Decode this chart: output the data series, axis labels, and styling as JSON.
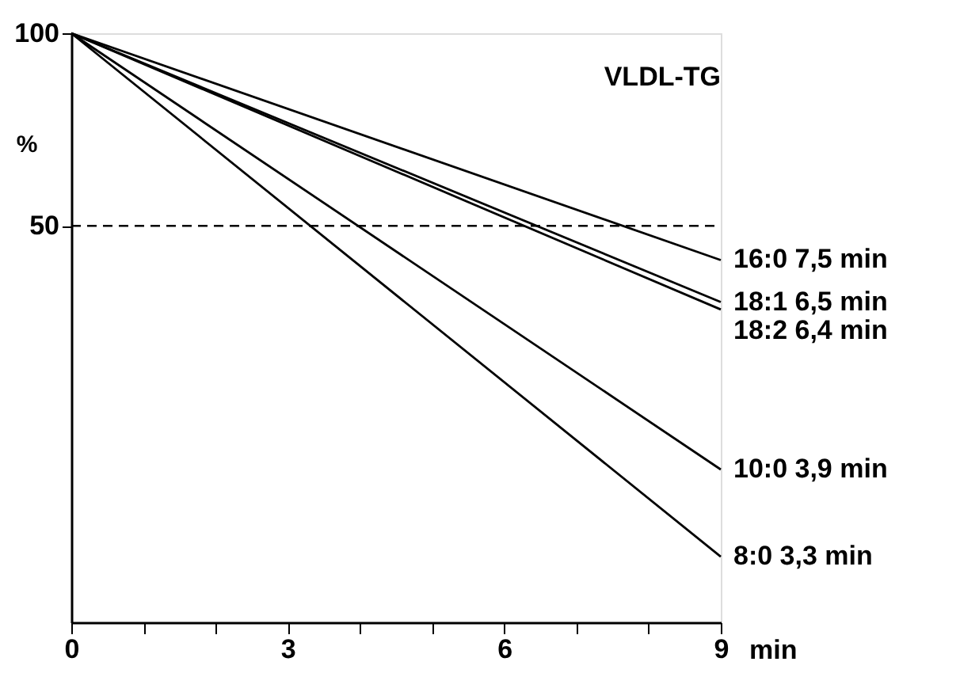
{
  "chart_data": {
    "type": "line",
    "title": "VLDL-TG",
    "xlabel": "min",
    "ylabel": "%",
    "x": [
      0,
      9
    ],
    "series": [
      {
        "name": "16:0  7,5 min",
        "color": "#000000",
        "values": [
          100,
          44.2
        ]
      },
      {
        "name": "18:1  6,5 min",
        "color": "#000000",
        "values": [
          100,
          38.0
        ]
      },
      {
        "name": "18:2  6,4 min",
        "color": "#000000",
        "values": [
          100,
          37.0
        ]
      },
      {
        "name": "10:0  3,9 min",
        "color": "#000000",
        "values": [
          100,
          20.8
        ]
      },
      {
        "name": "8:0  3,3 min",
        "color": "#000000",
        "values": [
          100,
          15.2
        ]
      }
    ],
    "log": "y",
    "xlim": [
      0,
      9
    ],
    "xticks": [
      0,
      {
        "value": 1,
        "label": null
      },
      {
        "value": 2,
        "label": null
      },
      3,
      {
        "value": 4,
        "label": null
      },
      {
        "value": 5,
        "label": null
      },
      6,
      {
        "value": 7,
        "label": null
      },
      {
        "value": 8,
        "label": null
      },
      9
    ],
    "ylim": [
      12,
      100
    ],
    "yticks": [
      50,
      100
    ],
    "ref_lines": [
      {
        "axis": "y",
        "value": 50,
        "label": null,
        "color": "#000000",
        "line_style": "dashed"
      }
    ],
    "grid": false,
    "marker": "none",
    "line_style": "solid"
  }
}
